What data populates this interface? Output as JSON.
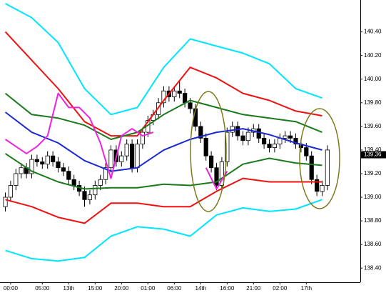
{
  "chart_data": {
    "type": "candlestick",
    "categories": [
      null,
      "00:00",
      null,
      null,
      null,
      null,
      null,
      "05:00",
      null,
      null,
      null,
      null,
      "13th",
      null,
      null,
      null,
      null,
      "15:00",
      null,
      null,
      null,
      null,
      "20:00",
      null,
      null,
      null,
      null,
      "01:00",
      null,
      null,
      null,
      null,
      "06:00",
      null,
      null,
      null,
      null,
      "14th",
      null,
      null,
      null,
      null,
      "16:00",
      null,
      null,
      null,
      null,
      "21:00",
      null,
      null,
      null,
      null,
      "02:00",
      null,
      null,
      null,
      null,
      "17th",
      null,
      null,
      null,
      null
    ],
    "open": [
      138.92,
      139.0,
      139.1,
      139.2,
      139.25,
      139.2,
      139.32,
      139.3,
      139.28,
      139.35,
      139.3,
      139.25,
      139.22,
      139.15,
      139.1,
      139.05,
      138.98,
      139.02,
      139.1,
      139.15,
      139.25,
      139.4,
      139.3,
      139.35,
      139.45,
      139.25,
      139.45,
      139.55,
      139.65,
      139.7,
      139.8,
      139.9,
      139.85,
      139.9,
      139.88,
      139.8,
      139.75,
      139.6,
      139.5,
      139.35,
      139.25,
      139.1,
      139.3,
      139.55,
      139.6,
      139.52,
      139.48,
      139.55,
      139.58,
      139.5,
      139.45,
      139.42,
      139.45,
      139.5,
      139.52,
      139.5,
      139.45,
      139.42,
      139.35,
      139.15,
      139.05,
      139.1
    ],
    "high": [
      139.04,
      139.14,
      139.24,
      139.29,
      139.29,
      139.36,
      139.36,
      139.34,
      139.39,
      139.39,
      139.34,
      139.29,
      139.26,
      139.19,
      139.14,
      139.09,
      139.06,
      139.14,
      139.19,
      139.29,
      139.44,
      139.44,
      139.39,
      139.49,
      139.49,
      139.49,
      139.59,
      139.69,
      139.74,
      139.84,
      139.94,
      139.94,
      139.94,
      139.98,
      139.92,
      139.84,
      139.79,
      139.64,
      139.54,
      139.39,
      139.29,
      139.34,
      139.59,
      139.64,
      139.64,
      139.56,
      139.59,
      139.62,
      139.62,
      139.54,
      139.49,
      139.49,
      139.54,
      139.56,
      139.56,
      139.54,
      139.49,
      139.46,
      139.39,
      139.19,
      139.14,
      139.44
    ],
    "low": [
      138.88,
      138.96,
      139.06,
      139.16,
      139.16,
      139.16,
      139.26,
      139.24,
      139.24,
      139.26,
      139.21,
      139.18,
      139.11,
      139.06,
      139.01,
      138.92,
      138.94,
      138.98,
      139.06,
      139.11,
      139.21,
      139.26,
      139.26,
      139.31,
      139.21,
      139.21,
      139.41,
      139.51,
      139.61,
      139.66,
      139.76,
      139.81,
      139.81,
      139.84,
      139.76,
      139.71,
      139.56,
      139.46,
      139.31,
      139.21,
      139.06,
      139.06,
      139.26,
      139.51,
      139.48,
      139.44,
      139.44,
      139.51,
      139.46,
      139.41,
      139.38,
      139.38,
      139.41,
      139.46,
      139.46,
      139.41,
      139.38,
      139.31,
      139.11,
      139.01,
      139.01,
      139.06
    ],
    "close": [
      139.0,
      139.1,
      139.2,
      139.25,
      139.2,
      139.32,
      139.3,
      139.28,
      139.35,
      139.3,
      139.25,
      139.22,
      139.15,
      139.1,
      139.05,
      138.98,
      139.02,
      139.1,
      139.15,
      139.25,
      139.4,
      139.3,
      139.35,
      139.45,
      139.25,
      139.45,
      139.55,
      139.65,
      139.7,
      139.8,
      139.9,
      139.85,
      139.9,
      139.88,
      139.8,
      139.75,
      139.6,
      139.5,
      139.35,
      139.25,
      139.1,
      139.3,
      139.55,
      139.6,
      139.52,
      139.48,
      139.55,
      139.58,
      139.5,
      139.45,
      139.42,
      139.45,
      139.5,
      139.52,
      139.5,
      139.45,
      139.42,
      139.35,
      139.15,
      139.05,
      139.1,
      139.4
    ],
    "up_color": "#ffffff",
    "down_color": "#000000",
    "lines": [
      {
        "color": "#00e5ff",
        "x": [
          0,
          5,
          10,
          15,
          20,
          25,
          30,
          35,
          40,
          45,
          50,
          55,
          60
        ],
        "values": [
          140.64,
          140.52,
          140.31,
          139.92,
          139.7,
          139.76,
          140.1,
          140.34,
          140.28,
          140.22,
          140.13,
          139.92,
          139.84
        ]
      },
      {
        "color": "#ee1111",
        "x": [
          0,
          5,
          10,
          15,
          20,
          25,
          30,
          35,
          40,
          45,
          50,
          55,
          60
        ],
        "values": [
          140.4,
          140.16,
          139.92,
          139.64,
          139.52,
          139.52,
          139.82,
          140.1,
          140.01,
          139.88,
          139.82,
          139.73,
          139.69
        ]
      },
      {
        "color": "#1a7a1a",
        "x": [
          0,
          5,
          10,
          15,
          20,
          25,
          30,
          35,
          40,
          45,
          50,
          55,
          60
        ],
        "values": [
          139.88,
          139.7,
          139.67,
          139.61,
          139.49,
          139.55,
          139.7,
          139.82,
          139.76,
          139.7,
          139.67,
          139.64,
          139.55
        ]
      },
      {
        "color": "#1a2ad0",
        "x": [
          0,
          5,
          10,
          15,
          20,
          25,
          30,
          35,
          40,
          45,
          50,
          55,
          60
        ],
        "values": [
          139.72,
          139.55,
          139.46,
          139.31,
          139.22,
          139.25,
          139.4,
          139.49,
          139.55,
          139.58,
          139.53,
          139.46,
          139.4
        ]
      },
      {
        "color": "#1a7a1a",
        "x": [
          0,
          5,
          10,
          15,
          20,
          25,
          30,
          35,
          40,
          45,
          50,
          55,
          60
        ],
        "values": [
          139.37,
          139.22,
          139.13,
          139.07,
          139.08,
          139.08,
          139.11,
          139.1,
          139.13,
          139.28,
          139.33,
          139.29,
          139.27
        ]
      },
      {
        "color": "#ee1111",
        "x": [
          0,
          5,
          10,
          15,
          20,
          25,
          30,
          35,
          40,
          45,
          50,
          55,
          60
        ],
        "values": [
          138.98,
          138.92,
          138.83,
          138.78,
          138.95,
          138.95,
          138.92,
          138.92,
          139.05,
          139.16,
          139.13,
          139.13,
          139.13
        ]
      },
      {
        "color": "#00e5ff",
        "x": [
          0,
          5,
          10,
          15,
          20,
          25,
          30,
          35,
          40,
          45,
          50,
          55,
          60
        ],
        "values": [
          138.55,
          138.48,
          138.46,
          138.49,
          138.67,
          138.75,
          138.73,
          138.67,
          138.85,
          138.91,
          138.88,
          138.9,
          138.98
        ]
      },
      {
        "color": "#ee22dd",
        "x": [
          0,
          2,
          4,
          6,
          8,
          10,
          12,
          14,
          16,
          18,
          20,
          22,
          24,
          26,
          28,
          30,
          38,
          40,
          42
        ],
        "values": [
          139.49,
          139.43,
          139.37,
          139.43,
          139.52,
          139.88,
          139.76,
          139.76,
          139.67,
          139.46,
          139.16,
          139.52,
          139.58,
          139.52,
          139.55,
          null,
          139.25,
          139.07,
          139.22
        ]
      }
    ],
    "ylim": [
      138.28,
      140.67
    ],
    "yticks": [
      {
        "value": 138.4,
        "label": "138.40"
      },
      {
        "value": 138.6,
        "label": "138.60"
      },
      {
        "value": 138.8,
        "label": "138.80"
      },
      {
        "value": 139,
        "label": "139.00"
      },
      {
        "value": 139.2,
        "label": "139.20"
      },
      {
        "value": 139.4,
        "label": "139.40"
      },
      {
        "value": 139.6,
        "label": "139.60"
      },
      {
        "value": 139.8,
        "label": "139.80"
      },
      {
        "value": 140,
        "label": "140.00"
      },
      {
        "value": 140.2,
        "label": "140.20"
      },
      {
        "value": 140.4,
        "label": "140.40"
      }
    ],
    "current_price": 139.36
  }
}
